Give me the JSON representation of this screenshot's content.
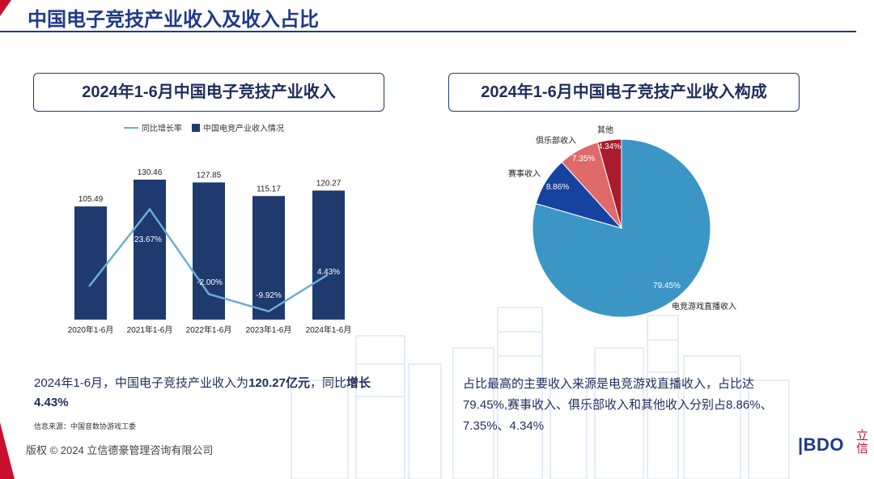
{
  "page_title": "中国电子竞技产业收入及收入占比",
  "left_box_title": "2024年1-6月中国电子竞技产业收入",
  "right_box_title": "2024年1-6月中国电子竞技产业收入构成",
  "legend": {
    "line_label": "同比增长率",
    "bar_label": "中国电竞产业收入情况"
  },
  "chart_data": [
    {
      "type": "bar",
      "categories": [
        "2020年1-6月",
        "2021年1-6月",
        "2022年1-6月",
        "2023年1-6月",
        "2024年1-6月"
      ],
      "series": [
        {
          "name": "中国电竞产业收入情况",
          "type": "bar",
          "values": [
            105.49,
            130.46,
            127.85,
            115.17,
            120.27
          ],
          "labels": [
            "105.49",
            "130.46",
            "127.85",
            "115.17",
            "120.27"
          ],
          "color": "#1f3a6e"
        },
        {
          "name": "同比增长率",
          "type": "line",
          "values": [
            null,
            23.67,
            -2.0,
            -9.92,
            4.43
          ],
          "labels": [
            "",
            "23.67%",
            "-2.00%",
            "-9.92%",
            "4.43%"
          ],
          "color": "#6aaed6"
        }
      ],
      "title": "2024年1-6月中国电子竞技产业收入",
      "legend": "top"
    },
    {
      "type": "pie",
      "title": "2024年1-6月中国电子竞技产业收入构成",
      "slices": [
        {
          "label": "电竞游戏直播收入",
          "value": 79.45,
          "value_label": "79.45%",
          "color": "#3b96c6"
        },
        {
          "label": "赛事收入",
          "value": 8.86,
          "value_label": "8.86%",
          "color": "#1743a0"
        },
        {
          "label": "俱乐部收入",
          "value": 7.35,
          "value_label": "7.35%",
          "color": "#e06a6a"
        },
        {
          "label": "其他",
          "value": 4.34,
          "value_label": "4.34%",
          "color": "#a81c2e"
        }
      ]
    }
  ],
  "left_caption": {
    "prefix": "2024年1-6月，中国电子竞技产业收入为",
    "amount": "120.27亿元",
    "middle": "，同比",
    "growth_word": "增长",
    "growth_value": "4.43%"
  },
  "right_caption": {
    "line1": "占比最高的主要收入来源是电竞游戏直播收入，占比达",
    "line2": "79.45%,赛事收入、俱乐部收入和其他收入分别占8.86%、",
    "line3": "7.35%、4.34%"
  },
  "source": "信息来源：中国音数协游戏工委",
  "copyright": "版权 © 2024 立信德豪管理咨询有限公司",
  "logo": {
    "text": "BDO",
    "mark": "立信",
    "accent_color": "#c8102e"
  }
}
